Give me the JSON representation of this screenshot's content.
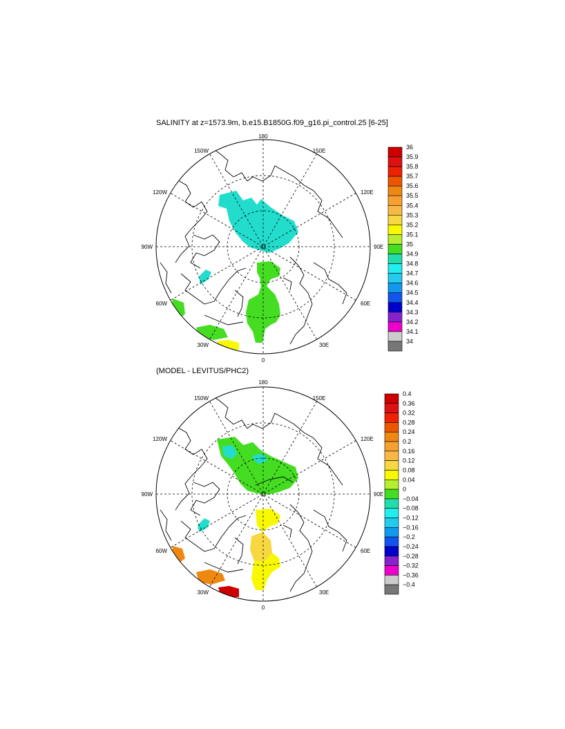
{
  "panels": [
    {
      "title": "SALINITY at z=1573.9m, b.e15.B1850G.f09_g16.pi_control.25 [6-25]",
      "meridian_labels": [
        "180",
        "150E",
        "120E",
        "90E",
        "60E",
        "30E",
        "0",
        "30W",
        "60W",
        "90W",
        "120W",
        "150W"
      ],
      "colorbar": {
        "labels": [
          "36",
          "35.9",
          "35.8",
          "35.7",
          "35.6",
          "35.5",
          "35.4",
          "35.3",
          "35.2",
          "35.1",
          "35",
          "34.9",
          "34.8",
          "34.7",
          "34.6",
          "34.5",
          "34.4",
          "34.3",
          "34.2",
          "34.1",
          "34"
        ],
        "colors": [
          "#cc0000",
          "#dd1111",
          "#ee2200",
          "#ee5500",
          "#ee8811",
          "#f5a030",
          "#f8b848",
          "#f8d840",
          "#f8f800",
          "#b8ee30",
          "#44dd22",
          "#22ddaa",
          "#22eeee",
          "#22ccee",
          "#1199ee",
          "#1155ee",
          "#0000cc",
          "#8822cc",
          "#ee00cc",
          "#cccccc",
          "#777777"
        ]
      }
    },
    {
      "title": "(MODEL - LEVITUS/PHC2)",
      "meridian_labels": [
        "180",
        "150E",
        "120E",
        "90E",
        "60E",
        "30E",
        "0",
        "30W",
        "60W",
        "90W",
        "120W",
        "150W"
      ],
      "colorbar": {
        "labels": [
          "0.4",
          "0.36",
          "0.32",
          "0.28",
          "0.24",
          "0.2",
          "0.16",
          "0.12",
          "0.08",
          "0.04",
          "0",
          "−0.04",
          "−0.08",
          "−0.12",
          "−0.16",
          "−0.2",
          "−0.24",
          "−0.28",
          "−0.32",
          "−0.36",
          "−0.4"
        ],
        "colors": [
          "#cc0000",
          "#dd1111",
          "#ee2200",
          "#ee5500",
          "#ee8811",
          "#f5a030",
          "#f8b848",
          "#f8d840",
          "#f8f800",
          "#b8ee30",
          "#44dd22",
          "#22ddaa",
          "#22eeee",
          "#22ccee",
          "#1199ee",
          "#1155ee",
          "#0000cc",
          "#8822cc",
          "#ee00cc",
          "#cccccc",
          "#777777"
        ]
      }
    }
  ],
  "field_colors": {
    "salinity_main": "#22ddcc",
    "salinity_high": "#44dd22",
    "salinity_mid": "#b8ee30",
    "salinity_yellow": "#f8f800",
    "diff_main": "#44dd22",
    "diff_cyan": "#22ddcc",
    "diff_yellow": "#f8f800",
    "diff_gold": "#f8d840",
    "diff_orange": "#ee8811",
    "diff_red": "#cc0000"
  }
}
